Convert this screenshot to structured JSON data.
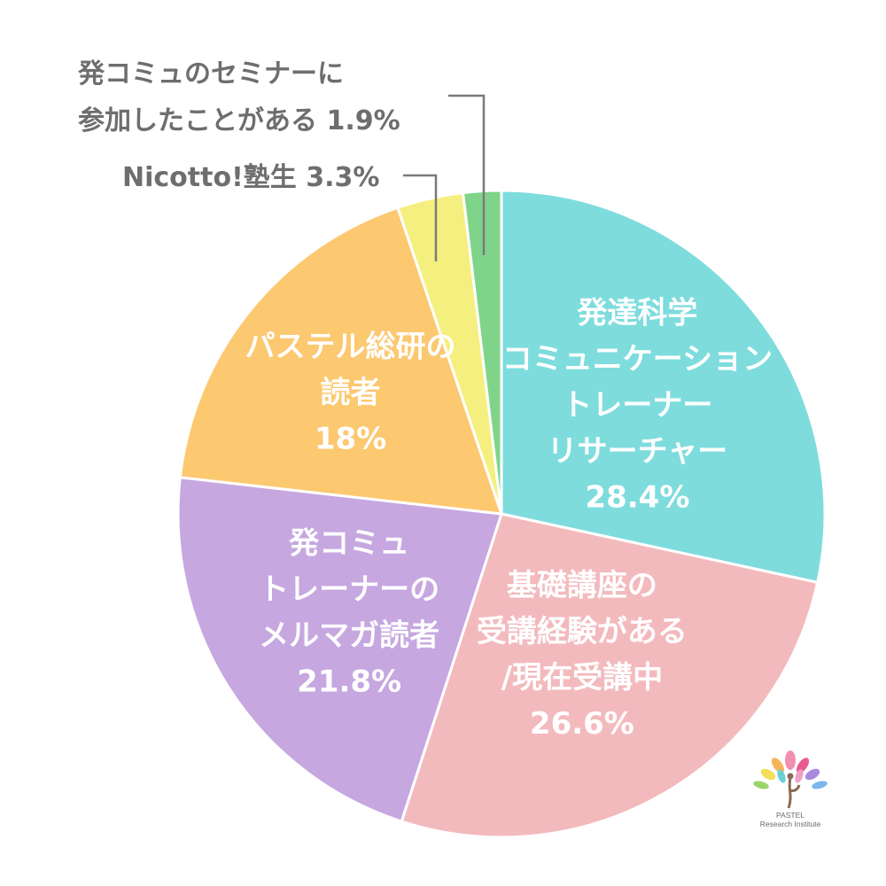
{
  "chart_data": {
    "type": "pie",
    "start_angle_deg": 0,
    "direction": "clockwise",
    "slices": [
      {
        "label_lines": [
          "発達科学",
          "コミュニケーション",
          "トレーナー",
          "リサーチャー"
        ],
        "value_label": "28.4%",
        "value": 28.4,
        "color": "#7edcdd"
      },
      {
        "label_lines": [
          "基礎講座の",
          "受講経験がある",
          "/現在受講中"
        ],
        "value_label": "26.6%",
        "value": 26.6,
        "color": "#f3babd"
      },
      {
        "label_lines": [
          "発コミュ",
          "トレーナーの",
          "メルマガ読者"
        ],
        "value_label": "21.8%",
        "value": 21.8,
        "color": "#c6a7e0"
      },
      {
        "label_lines": [
          "パステル総研の",
          "読者"
        ],
        "value_label": "18%",
        "value": 18,
        "color": "#fcc870"
      },
      {
        "label_lines": [
          "Nicotto!塾生 3.3%"
        ],
        "value_label": "",
        "value": 3.3,
        "color": "#f5ef7f",
        "callout": true
      },
      {
        "label_lines": [
          "発コミュのセミナーに",
          "参加したことがある 1.9%"
        ],
        "value_label": "",
        "value": 1.9,
        "color": "#7fd48a",
        "callout": true
      }
    ]
  },
  "logo": {
    "line1": "PASTEL",
    "line2": "Research Institute"
  }
}
